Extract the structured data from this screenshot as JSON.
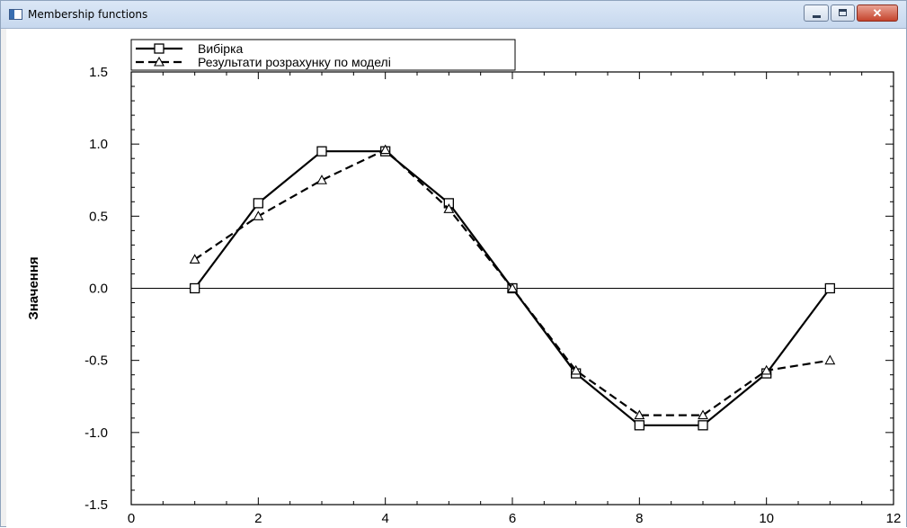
{
  "window": {
    "title": "Membership functions",
    "close_glyph": "✕"
  },
  "icons": {
    "app": "app-window-icon",
    "minimize": "minimize-icon",
    "maximize": "maximize-icon",
    "close": "close-icon"
  },
  "chart_data": {
    "type": "line",
    "title": "",
    "xlabel": "",
    "ylabel": "Значення",
    "xlim": [
      0,
      12
    ],
    "ylim": [
      -1.5,
      1.5
    ],
    "x_ticks": [
      0,
      2,
      4,
      6,
      8,
      10,
      12
    ],
    "y_ticks": [
      -1.5,
      -1.0,
      -0.5,
      0.0,
      0.5,
      1.0,
      1.5
    ],
    "y_tick_labels": [
      "-1.5",
      "-1.0",
      "-0.5",
      "0.0",
      "0.5",
      "1.0",
      "1.5"
    ],
    "zero_line": true,
    "grid": false,
    "legend_position": "top-left",
    "series": [
      {
        "name": "Вибірка",
        "style": "solid",
        "marker": "square",
        "color": "#000000",
        "x": [
          1,
          2,
          3,
          4,
          5,
          6,
          7,
          8,
          9,
          10,
          11
        ],
        "y": [
          0.0,
          0.59,
          0.95,
          0.95,
          0.59,
          0.0,
          -0.59,
          -0.95,
          -0.95,
          -0.59,
          0.0
        ]
      },
      {
        "name": "Результати розрахунку по моделі",
        "style": "dashed",
        "marker": "triangle",
        "color": "#000000",
        "x": [
          1,
          2,
          3,
          4,
          5,
          6,
          7,
          8,
          9,
          10,
          11
        ],
        "y": [
          0.2,
          0.5,
          0.75,
          0.96,
          0.55,
          0.0,
          -0.57,
          -0.88,
          -0.88,
          -0.57,
          -0.5
        ]
      }
    ]
  }
}
